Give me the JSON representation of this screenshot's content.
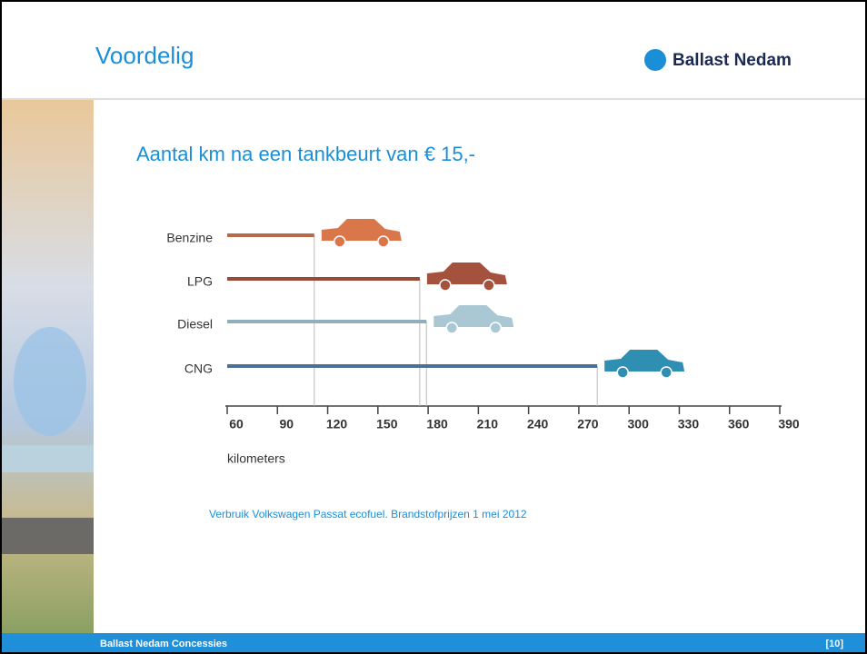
{
  "header": {
    "title": "Voordelig",
    "brand": "Ballast Nedam"
  },
  "chart_data": {
    "type": "bar",
    "orientation": "horizontal",
    "title": "Aantal km na een tankbeurt van € 15,-",
    "categories": [
      "Benzine",
      "LPG",
      "Diesel",
      "CNG"
    ],
    "values": [
      112,
      175,
      179,
      281
    ],
    "colors": [
      "#b8694c",
      "#9a4a38",
      "#92aebd",
      "#4d6f94"
    ],
    "car_colors": [
      "#d9774a",
      "#a4513d",
      "#a9c8d4",
      "#2f8fb3"
    ],
    "xlim": [
      60,
      390
    ],
    "xticks": [
      60,
      90,
      120,
      150,
      180,
      210,
      240,
      270,
      300,
      330,
      360,
      390
    ],
    "xlabel": "kilometers",
    "note": "Verbruik Volkswagen Passat ecofuel. Brandstofprijzen 1 mei 2012"
  },
  "footer": {
    "text": "Ballast Nedam Concessies",
    "page": "[10]"
  }
}
